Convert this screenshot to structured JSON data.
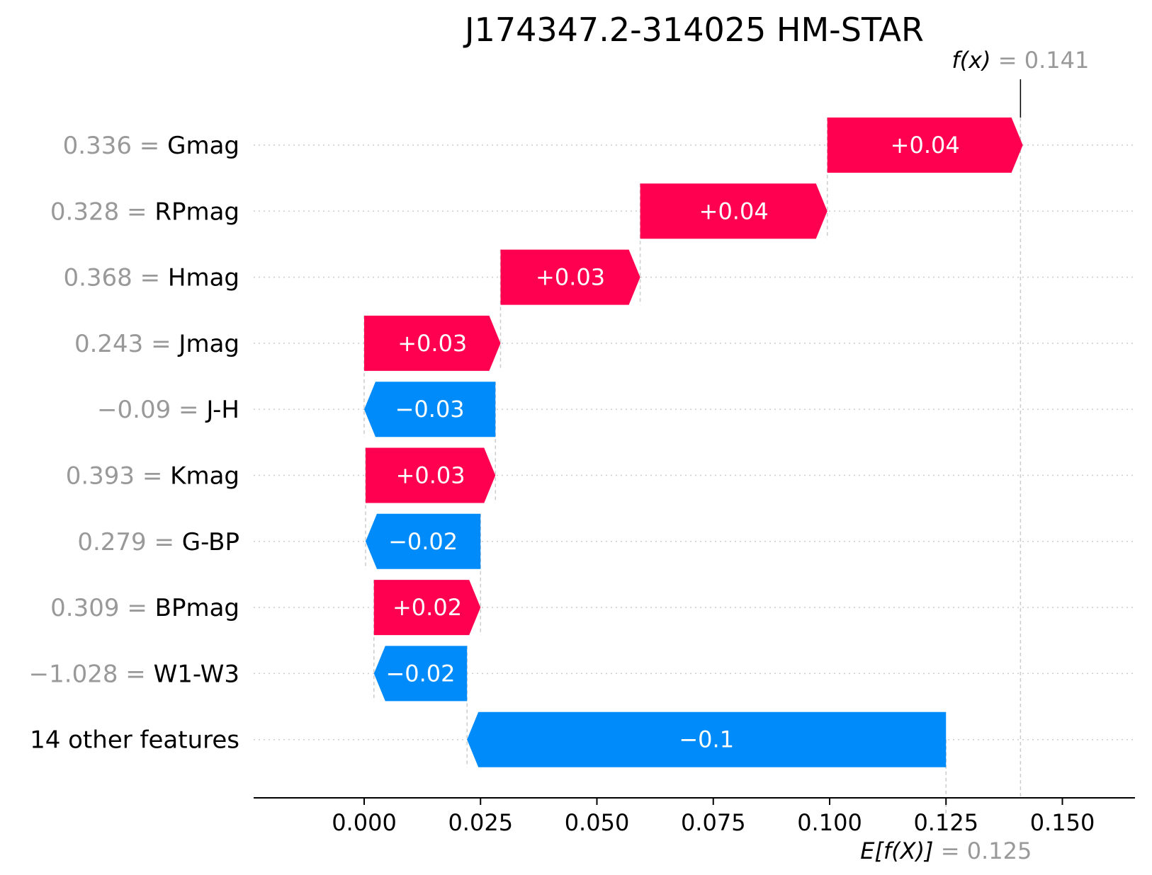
{
  "chart_data": {
    "type": "waterfall",
    "title": "J174347.2-314025 HM-STAR",
    "xlim": [
      -0.024,
      0.166
    ],
    "xticks": [
      "0.000",
      "0.025",
      "0.050",
      "0.075",
      "0.100",
      "0.125",
      "0.150"
    ],
    "xtick_values": [
      0.0,
      0.025,
      0.05,
      0.075,
      0.1,
      0.125,
      0.15
    ],
    "base_value": 0.125,
    "base_label": "E[f(X)]",
    "base_value_text": "= 0.125",
    "output_value": 0.141,
    "output_label": "f(x)",
    "output_value_text": "= 0.141",
    "features": [
      {
        "value": "0.336",
        "name": "Gmag",
        "start": 0.0995,
        "end": 0.1415,
        "label": "+0.04"
      },
      {
        "value": "0.328",
        "name": "RPmag",
        "start": 0.0593,
        "end": 0.0995,
        "label": "+0.04"
      },
      {
        "value": "0.368",
        "name": "Hmag",
        "start": 0.0293,
        "end": 0.0593,
        "label": "+0.03"
      },
      {
        "value": "0.243",
        "name": "Jmag",
        "start": 0.0,
        "end": 0.0293,
        "label": "+0.03"
      },
      {
        "value": "−0.09",
        "name": "J-H",
        "start": 0.0282,
        "end": 0.0,
        "label": "−0.03"
      },
      {
        "value": "0.393",
        "name": "Kmag",
        "start": 0.0003,
        "end": 0.0282,
        "label": "+0.03"
      },
      {
        "value": "0.279",
        "name": "G-BP",
        "start": 0.025,
        "end": 0.0003,
        "label": "−0.02"
      },
      {
        "value": "0.309",
        "name": "BPmag",
        "start": 0.0021,
        "end": 0.025,
        "label": "+0.02"
      },
      {
        "value": "−1.028",
        "name": "W1-W3",
        "start": 0.0221,
        "end": 0.0021,
        "label": "−0.02"
      },
      {
        "value": "",
        "name": "14 other features",
        "start": 0.125,
        "end": 0.0221,
        "label": "−0.1"
      }
    ]
  },
  "colors": {
    "positive": "#ff0051",
    "negative": "#008bfb",
    "grid": "#cccccc",
    "axis": "#000000",
    "muted": "#999999"
  }
}
